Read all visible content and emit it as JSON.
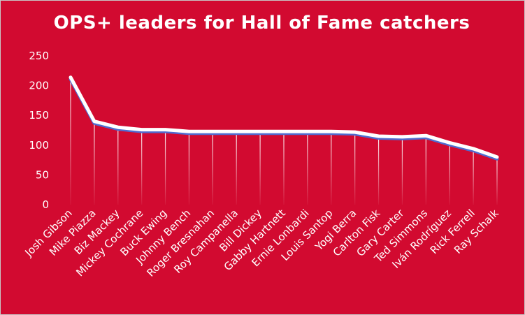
{
  "chart_data": {
    "type": "line",
    "title": "OPS+ leaders for Hall of Fame catchers",
    "xlabel": "",
    "ylabel": "",
    "ylim": [
      0,
      250
    ],
    "yticks": [
      0,
      50,
      100,
      150,
      200,
      250
    ],
    "grid": false,
    "drop_lines": true,
    "categories": [
      "Josh Gibson",
      "Mike Piazza",
      "Biz Mackey",
      "Mickey Cochrane",
      "Buck Ewing",
      "Johnny Bench",
      "Roger Bresnahan",
      "Roy Campanella",
      "Bill Dickey",
      "Gabby Hartnett",
      "Ernie Lonbardi",
      "Louis Santop",
      "Yogi Berra",
      "Carlton Fisk",
      "Gary Carter",
      "Ted Simmons",
      "Iván Rodríguez",
      "Rick Ferrell",
      "Ray Schalk"
    ],
    "series": [
      {
        "values": [
          214,
          140,
          130,
          126,
          126,
          123,
          123,
          123,
          123,
          123,
          123,
          123,
          122,
          115,
          114,
          116,
          104,
          94,
          80
        ]
      }
    ],
    "colors": {
      "background": "#d20a30",
      "line": "#ffffff",
      "line_shadow": "#4f6bd0",
      "text": "#ffffff"
    }
  }
}
